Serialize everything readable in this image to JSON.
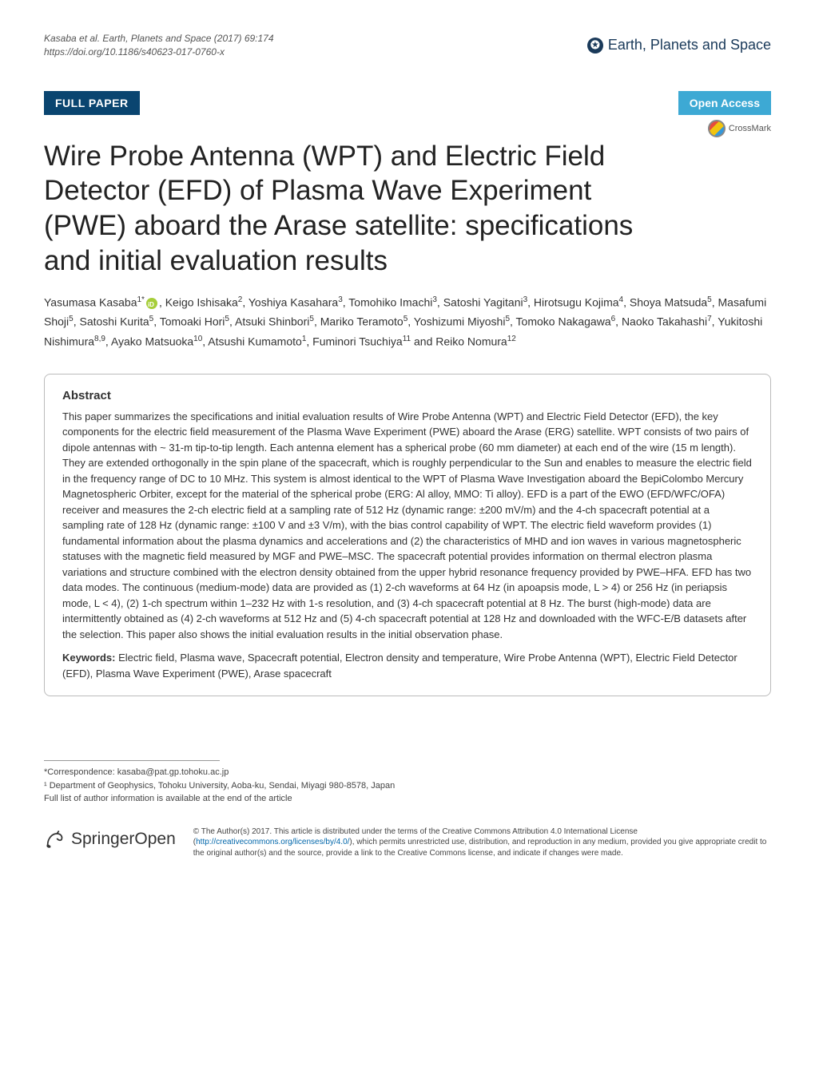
{
  "header": {
    "citation_line1": "Kasaba et al. Earth, Planets and Space  (2017) 69:174",
    "citation_line2": "https://doi.org/10.1186/s40623-017-0760-x",
    "journal_name": "Earth, Planets and Space",
    "journal_icon_glyph": "✪"
  },
  "badges": {
    "full_paper": "FULL PAPER",
    "open_access": "Open Access",
    "crossmark": "CrossMark"
  },
  "title": "Wire Probe Antenna (WPT) and Electric Field Detector (EFD) of Plasma Wave Experiment (PWE) aboard the Arase satellite: specifications and initial evaluation results",
  "authors_html": "Yasumasa Kasaba<sup>1*</sup><span class=\"orcid-icon\" data-name=\"orcid-icon\" data-interactable=\"false\"></span>, Keigo Ishisaka<sup>2</sup>, Yoshiya Kasahara<sup>3</sup>, Tomohiko Imachi<sup>3</sup>, Satoshi Yagitani<sup>3</sup>, Hirotsugu Kojima<sup>4</sup>, Shoya Matsuda<sup>5</sup>, Masafumi Shoji<sup>5</sup>, Satoshi Kurita<sup>5</sup>, Tomoaki Hori<sup>5</sup>, Atsuki Shinbori<sup>5</sup>, Mariko Teramoto<sup>5</sup>, Yoshizumi Miyoshi<sup>5</sup>, Tomoko Nakagawa<sup>6</sup>, Naoko Takahashi<sup>7</sup>, Yukitoshi Nishimura<sup>8,9</sup>, Ayako Matsuoka<sup>10</sup>, Atsushi Kumamoto<sup>1</sup>, Fuminori Tsuchiya<sup>11</sup> and Reiko Nomura<sup>12</sup>",
  "abstract": {
    "heading": "Abstract",
    "body": "This paper summarizes the specifications and initial evaluation results of Wire Probe Antenna (WPT) and Electric Field Detector (EFD), the key components for the electric field measurement of the Plasma Wave Experiment (PWE) aboard the Arase (ERG) satellite. WPT consists of two pairs of dipole antennas with ~ 31-m tip-to-tip length. Each antenna element has a spherical probe (60 mm diameter) at each end of the wire (15 m length). They are extended orthogonally in the spin plane of the spacecraft, which is roughly perpendicular to the Sun and enables to measure the electric field in the frequency range of DC to 10 MHz. This system is almost identical to the WPT of Plasma Wave Investigation aboard the BepiColombo Mercury Magnetospheric Orbiter, except for the material of the spherical probe (ERG: Al alloy, MMO: Ti alloy). EFD is a part of the EWO (EFD/WFC/OFA) receiver and measures the 2-ch electric field at a sampling rate of 512 Hz (dynamic range: ±200 mV/m) and the 4-ch spacecraft potential at a sampling rate of 128 Hz (dynamic range: ±100 V and ±3 V/m), with the bias control capability of WPT. The electric field waveform provides (1) fundamental information about the plasma dynamics and accelerations and (2) the characteristics of MHD and ion waves in various magnetospheric statuses with the magnetic field measured by MGF and PWE–MSC. The spacecraft potential provides information on thermal electron plasma variations and structure combined with the electron density obtained from the upper hybrid resonance frequency provided by PWE–HFA. EFD has two data modes. The continuous (medium-mode) data are provided as (1) 2-ch waveforms at 64 Hz (in apoapsis mode, L > 4) or 256 Hz (in periapsis mode, L < 4), (2) 1-ch spectrum within 1–232 Hz with 1-s resolution, and (3) 4-ch spacecraft potential at 8 Hz. The burst (high-mode) data are intermittently obtained as (4) 2-ch waveforms at 512 Hz and (5) 4-ch spacecraft potential at 128 Hz and downloaded with the WFC-E/B datasets after the selection. This paper also shows the initial evaluation results in the initial observation phase.",
    "keywords_label": "Keywords:",
    "keywords": "Electric field, Plasma wave, Spacecraft potential, Electron density and temperature, Wire Probe Antenna (WPT), Electric Field Detector (EFD), Plasma Wave Experiment (PWE), Arase spacecraft"
  },
  "footer": {
    "correspondence": "*Correspondence:  kasaba@pat.gp.tohoku.ac.jp",
    "affiliation": "¹ Department of Geophysics, Tohoku University, Aoba-ku, Sendai, Miyagi 980-8578, Japan",
    "full_list": "Full list of author information is available at the end of the article",
    "springer_label": "Springer",
    "springer_open": "Open",
    "license": "© The Author(s) 2017. This article is distributed under the terms of the Creative Commons Attribution 4.0 International License (http://creativecommons.org/licenses/by/4.0/), which permits unrestricted use, distribution, and reproduction in any medium, provided you give appropriate credit to the original author(s) and the source, provide a link to the Creative Commons license, and indicate if changes were made.",
    "license_link": "http://creativecommons.org/licenses/by/4.0/"
  },
  "colors": {
    "full_paper_bg": "#0a4570",
    "open_access_bg": "#3da9d4",
    "brand_color": "#1a3a5a",
    "text": "#333333"
  }
}
